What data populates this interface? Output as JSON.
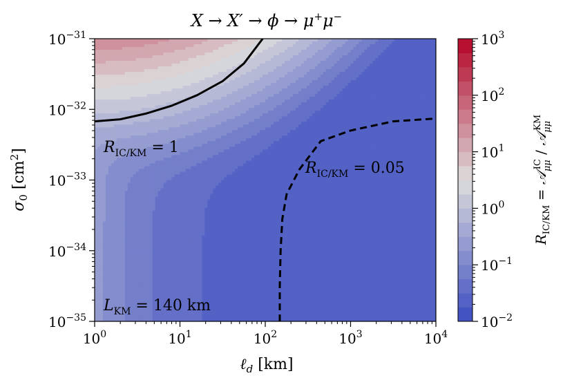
{
  "chart_data": {
    "type": "heatmap",
    "title": "X → X′ → ϕ → μ⁺μ⁻",
    "xlabel": "ℓd [km]",
    "ylabel": "σ0 [cm²]",
    "x_scale": "log",
    "y_scale": "log",
    "xlim_log10": [
      0,
      4
    ],
    "ylim_log10": [
      -35,
      -31
    ],
    "x_tick_exponents": [
      0,
      1,
      2,
      3,
      4
    ],
    "y_tick_exponents": [
      -35,
      -34,
      -33,
      -32,
      -31
    ],
    "colorbar": {
      "label": "RIC/KM = A_μμ^IC / A_μμ^KM",
      "range_log10": [
        -2,
        3
      ],
      "tick_exponents": [
        -2,
        -1,
        0,
        1,
        2,
        3
      ],
      "levels_per_decade": 4,
      "colormap": "coolwarm"
    },
    "contours": [
      {
        "name": "R = 1",
        "style": "solid",
        "level": 1,
        "points": [
          [
            0,
            -32.17
          ],
          [
            0.3,
            -32.14
          ],
          [
            0.6,
            -32.06
          ],
          [
            0.9,
            -31.95
          ],
          [
            1.2,
            -31.8
          ],
          [
            1.5,
            -31.6
          ],
          [
            1.75,
            -31.35
          ],
          [
            1.97,
            -31.0
          ]
        ]
      },
      {
        "name": "R = 0.05",
        "style": "dashed",
        "level": 0.05,
        "points": [
          [
            2.17,
            -35
          ],
          [
            2.17,
            -34.5
          ],
          [
            2.18,
            -34.0
          ],
          [
            2.2,
            -33.55
          ],
          [
            2.25,
            -33.2
          ],
          [
            2.4,
            -32.85
          ],
          [
            2.65,
            -32.45
          ],
          [
            3.0,
            -32.3
          ],
          [
            3.5,
            -32.17
          ],
          [
            4.0,
            -32.13
          ]
        ]
      }
    ],
    "annotations": {
      "a1_base": "R",
      "a1_sub": "IC/KM",
      "a1_rest": " = 1",
      "a2_base": "R",
      "a2_sub": "IC/KM",
      "a2_rest": " = 0.05",
      "a3_base": "L",
      "a3_sub": "KM",
      "a3_rest": " = 140 km"
    },
    "colors": {
      "low": "#3b4cc0",
      "mid": "#dddddd",
      "high": "#b40426"
    }
  }
}
